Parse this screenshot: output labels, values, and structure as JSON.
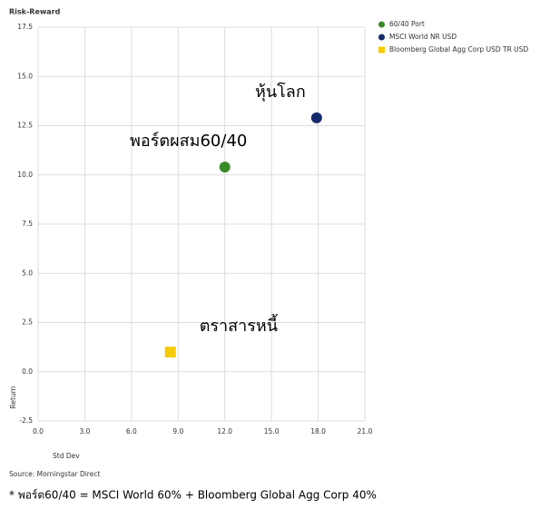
{
  "chart_data": {
    "type": "scatter",
    "title": "Risk-Reward",
    "xlabel": "Std Dev",
    "ylabel": "Return",
    "source": "Source: Morningstar Direct",
    "footnote": "* พอร์ต60/40 = MSCI World 60% + Bloomberg Global Agg Corp 40%",
    "xlim": [
      0,
      21
    ],
    "ylim": [
      -2.5,
      17.5
    ],
    "xticks": [
      {
        "value": 0,
        "label": "0.0"
      },
      {
        "value": 3,
        "label": "3.0"
      },
      {
        "value": 6,
        "label": "6.0"
      },
      {
        "value": 9,
        "label": "9.0"
      },
      {
        "value": 12,
        "label": "12.0"
      },
      {
        "value": 15,
        "label": "15.0"
      },
      {
        "value": 18,
        "label": "18.0"
      },
      {
        "value": 21,
        "label": "21.0"
      }
    ],
    "yticks": [
      -2.5,
      {
        "value": 0,
        "label": "0.0"
      },
      2.5,
      {
        "value": 5,
        "label": "5.0"
      },
      7.5,
      {
        "value": 10,
        "label": "10.0"
      },
      12.5,
      {
        "value": 15,
        "label": "15.0"
      },
      17.5
    ],
    "grid": true,
    "series": [
      {
        "name": "60/40 Port",
        "color": "#3a8a2a",
        "marker": "circle",
        "x": [
          12.0
        ],
        "values": [
          10.4
        ],
        "annotation": "พอร์ตผสม60/40"
      },
      {
        "name": "MSCI World NR USD",
        "color": "#142a6b",
        "marker": "circle",
        "x": [
          17.9
        ],
        "values": [
          12.9
        ],
        "annotation": "หุ้นโลก"
      },
      {
        "name": "Bloomberg Global Agg Corp USD TR USD",
        "color": "#f5cc00",
        "marker": "square",
        "x": [
          8.5
        ],
        "values": [
          1.0
        ],
        "annotation": "ตราสารหนี้"
      }
    ]
  }
}
